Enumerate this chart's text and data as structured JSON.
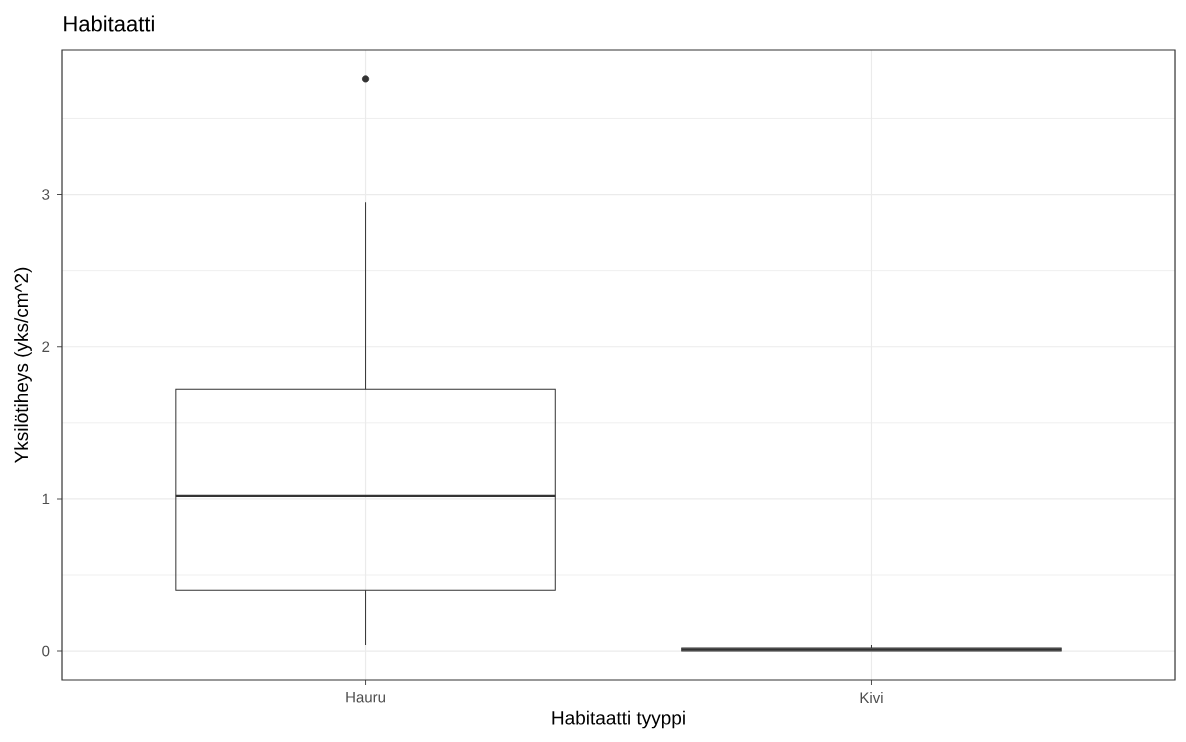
{
  "chart_data": {
    "type": "box",
    "title": "Habitaatti",
    "xlabel": "Habitaatti tyyppi",
    "ylabel": "Yksilötiheys (yks/cm^2)",
    "categories": [
      "Hauru",
      "Kivi"
    ],
    "boxes": [
      {
        "low": 0.04,
        "q1": 0.4,
        "median": 1.02,
        "q3": 1.72,
        "high": 2.95,
        "outliers": [
          3.76
        ]
      },
      {
        "low": 0,
        "q1": 0,
        "median": 0.01,
        "q3": 0.02,
        "high": 0.04
      }
    ],
    "color": "#333333",
    "ylim": [
      -0.19,
      3.95
    ],
    "yticks": [
      0,
      1,
      2,
      3
    ],
    "grid": true
  }
}
